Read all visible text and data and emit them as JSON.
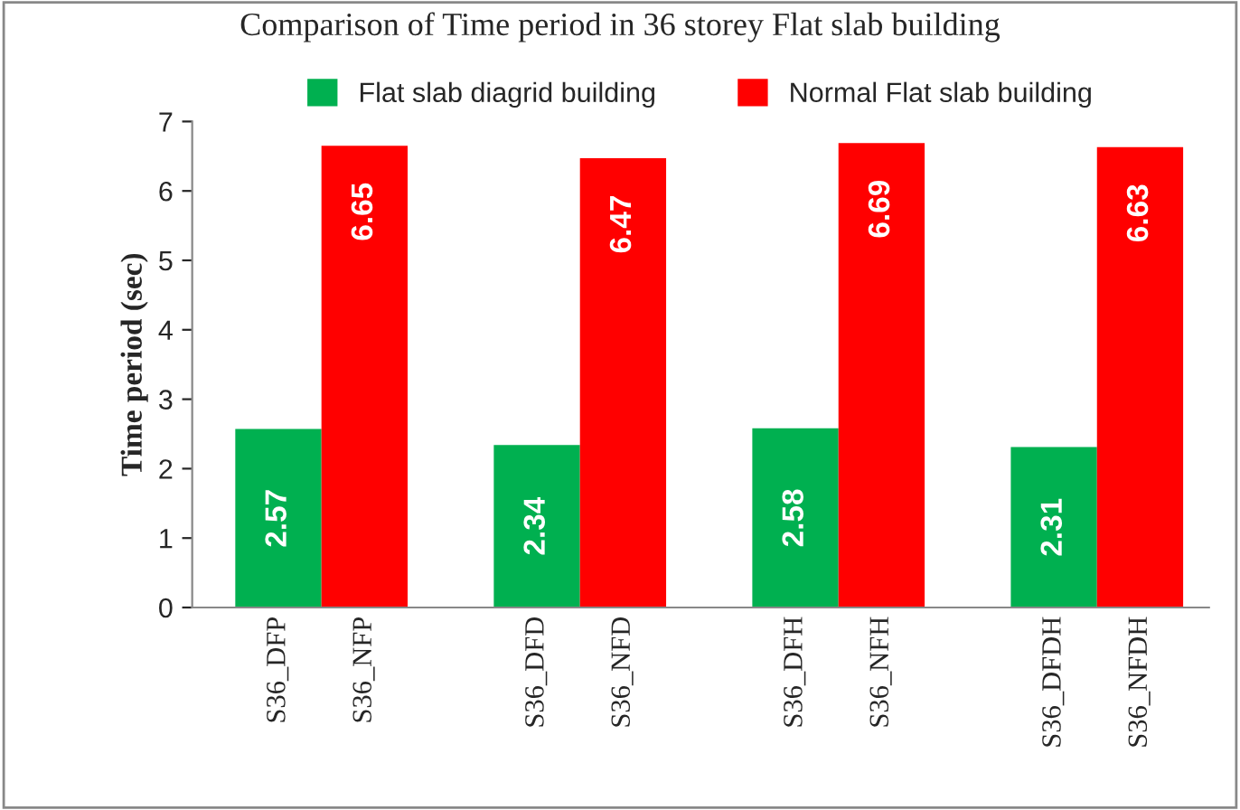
{
  "chart_data": {
    "type": "bar",
    "title": "Comparison of Time period in 36 storey Flat slab building",
    "ylabel": "Time period (sec)",
    "categories": [
      "S36_DFP",
      "S36_NFP",
      "S36_DFD",
      "S36_NFD",
      "S36_DFH",
      "S36_NFH",
      "S36_DFDH",
      "S36_NFDH"
    ],
    "series": [
      {
        "name": "Flat slab diagrid building",
        "color": "#00b050",
        "values": [
          2.57,
          null,
          2.34,
          null,
          2.58,
          null,
          2.31,
          null
        ]
      },
      {
        "name": "Normal Flat slab building",
        "color": "#ff0000",
        "values": [
          null,
          6.65,
          null,
          6.47,
          null,
          6.69,
          null,
          6.63
        ]
      }
    ],
    "ylim": [
      0,
      7
    ],
    "yticks": [
      0,
      1,
      2,
      3,
      4,
      5,
      6,
      7
    ],
    "grid": false,
    "legend": "top",
    "data_labels": true
  }
}
